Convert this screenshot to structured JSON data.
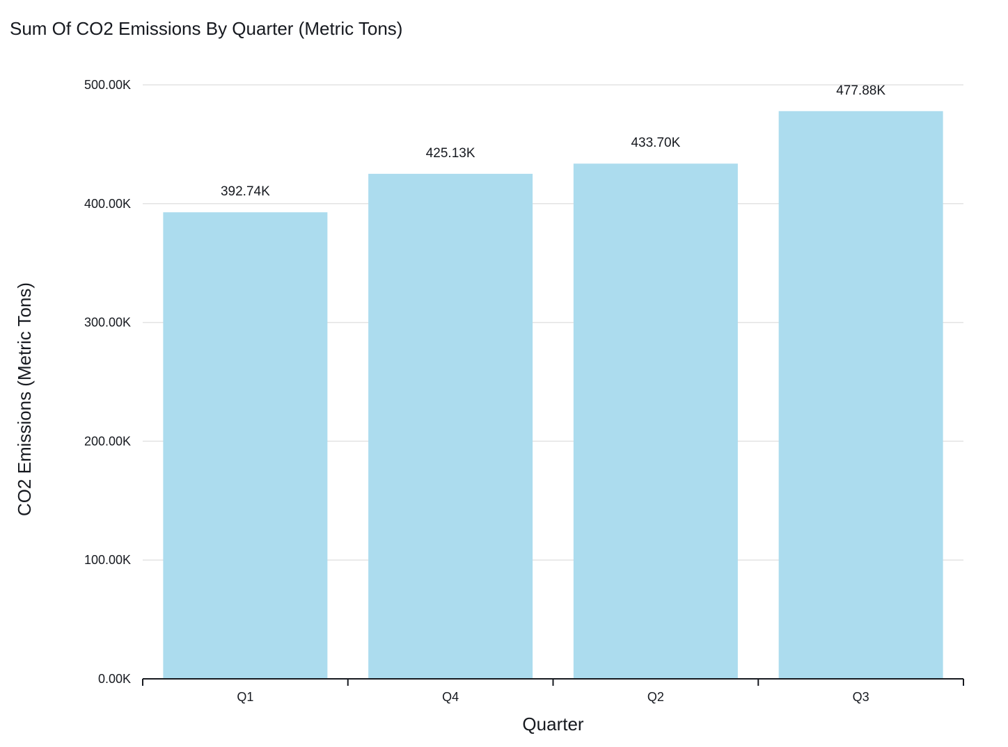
{
  "chart_data": {
    "type": "bar",
    "title": "Sum Of CO2 Emissions By Quarter (Metric Tons)",
    "xlabel": "Quarter",
    "ylabel": "CO2 Emissions (Metric Tons)",
    "categories": [
      "Q1",
      "Q4",
      "Q2",
      "Q3"
    ],
    "values": [
      392740,
      425130,
      433700,
      477880
    ],
    "data_labels": [
      "392.74K",
      "425.13K",
      "433.70K",
      "477.88K"
    ],
    "ylim": [
      0,
      500000
    ],
    "yticks": [
      0,
      100000,
      200000,
      300000,
      400000,
      500000
    ],
    "ytick_labels": [
      "0.00K",
      "100.00K",
      "200.00K",
      "300.00K",
      "400.00K",
      "500.00K"
    ],
    "grid": true,
    "legend": "none",
    "bar_color": "#acdcee",
    "grid_color": "#e3e3e3",
    "axis_color": "#16191f"
  }
}
